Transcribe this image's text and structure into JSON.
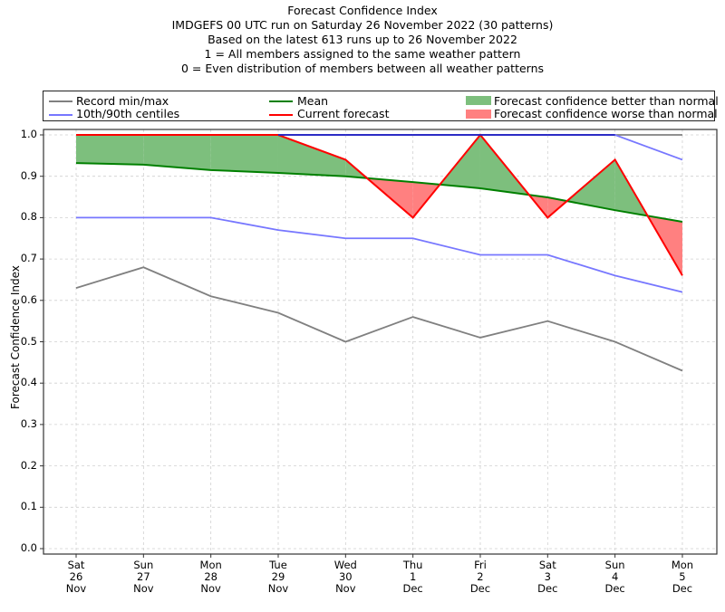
{
  "chart_data": {
    "type": "line",
    "title_lines": [
      "Forecast Confidence Index",
      "IMDGEFS 00 UTC run on Saturday 26 November 2022 (30 patterns)",
      "Based on the latest 613 runs up to 26 November 2022",
      "1 = All members assigned to the same weather pattern",
      "0 = Even distribution of members between all weather patterns"
    ],
    "xlabel": "",
    "ylabel": "Forecast Confidence Index",
    "ylim": [
      0.0,
      1.0
    ],
    "yticks": [
      "0.0",
      "0.1",
      "0.2",
      "0.3",
      "0.4",
      "0.5",
      "0.6",
      "0.7",
      "0.8",
      "0.9",
      "1.0"
    ],
    "grid": true,
    "legend_position": "top",
    "categories": [
      {
        "day": "Sat",
        "date": "26",
        "month": "Nov"
      },
      {
        "day": "Sun",
        "date": "27",
        "month": "Nov"
      },
      {
        "day": "Mon",
        "date": "28",
        "month": "Nov"
      },
      {
        "day": "Tue",
        "date": "29",
        "month": "Nov"
      },
      {
        "day": "Wed",
        "date": "30",
        "month": "Nov"
      },
      {
        "day": "Thu",
        "date": "1",
        "month": "Dec"
      },
      {
        "day": "Fri",
        "date": "2",
        "month": "Dec"
      },
      {
        "day": "Sat",
        "date": "3",
        "month": "Dec"
      },
      {
        "day": "Sun",
        "date": "4",
        "month": "Dec"
      },
      {
        "day": "Mon",
        "date": "5",
        "month": "Dec"
      }
    ],
    "series": [
      {
        "name": "Record min/max",
        "role": "record_max",
        "color": "#808080",
        "values": [
          1.0,
          1.0,
          1.0,
          1.0,
          1.0,
          1.0,
          1.0,
          1.0,
          1.0,
          1.0
        ]
      },
      {
        "name": "Record min/max",
        "role": "record_min",
        "color": "#808080",
        "values": [
          0.63,
          0.68,
          0.61,
          0.57,
          0.5,
          0.56,
          0.51,
          0.55,
          0.5,
          0.43
        ]
      },
      {
        "name": "10th/90th centiles",
        "role": "p90",
        "color": "#7777ff",
        "values": [
          1.0,
          1.0,
          1.0,
          1.0,
          1.0,
          1.0,
          1.0,
          1.0,
          1.0,
          0.94
        ]
      },
      {
        "name": "10th/90th centiles",
        "role": "p10",
        "color": "#7777ff",
        "values": [
          0.8,
          0.8,
          0.8,
          0.77,
          0.75,
          0.75,
          0.71,
          0.71,
          0.66,
          0.62
        ]
      },
      {
        "name": "Mean",
        "role": "mean",
        "color": "#008000",
        "values": [
          0.932,
          0.928,
          0.915,
          0.908,
          0.9,
          0.886,
          0.871,
          0.849,
          0.818,
          0.79
        ]
      },
      {
        "name": "Current forecast",
        "role": "current",
        "color": "#ff0000",
        "values": [
          1.0,
          1.0,
          1.0,
          1.0,
          0.94,
          0.8,
          1.0,
          0.8,
          0.94,
          0.66
        ]
      }
    ],
    "fill_better_color": "#7dbf7d",
    "fill_worse_color": "#ff8080",
    "legend": [
      {
        "label": "Record min/max",
        "kind": "line",
        "color": "#808080"
      },
      {
        "label": "10th/90th centiles",
        "kind": "line",
        "color": "#7777ff"
      },
      {
        "label": "Mean",
        "kind": "line",
        "color": "#008000"
      },
      {
        "label": "Current forecast",
        "kind": "line",
        "color": "#ff0000"
      },
      {
        "label": "Forecast confidence better than normal",
        "kind": "patch",
        "color": "#7dbf7d"
      },
      {
        "label": "Forecast confidence worse than normal",
        "kind": "patch",
        "color": "#ff8080"
      }
    ]
  }
}
